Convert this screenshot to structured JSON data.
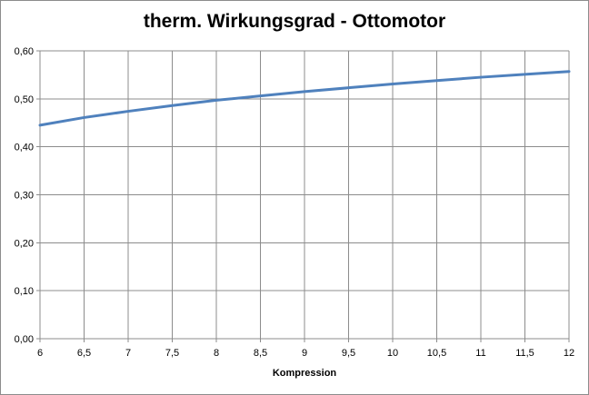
{
  "chart_data": {
    "type": "line",
    "title": "therm. Wirkungsgrad - Ottomotor",
    "xlabel": "Kompression",
    "ylabel": "",
    "xlim": [
      6,
      12
    ],
    "ylim": [
      0,
      0.6
    ],
    "x_ticks": [
      "6",
      "6,5",
      "7",
      "7,5",
      "8",
      "8,5",
      "9",
      "9,5",
      "10",
      "10,5",
      "11",
      "11,5",
      "12"
    ],
    "y_ticks": [
      "0,00",
      "0,10",
      "0,20",
      "0,30",
      "0,40",
      "0,50",
      "0,60"
    ],
    "grid": true,
    "legend": "none",
    "series": [
      {
        "color": "#4f81bd",
        "x": [
          6,
          6.5,
          7,
          7.5,
          8,
          8.5,
          9,
          9.5,
          10,
          10.5,
          11,
          11.5,
          12
        ],
        "y": [
          0.445,
          0.461,
          0.474,
          0.486,
          0.497,
          0.506,
          0.515,
          0.523,
          0.531,
          0.538,
          0.545,
          0.551,
          0.557
        ]
      }
    ]
  }
}
